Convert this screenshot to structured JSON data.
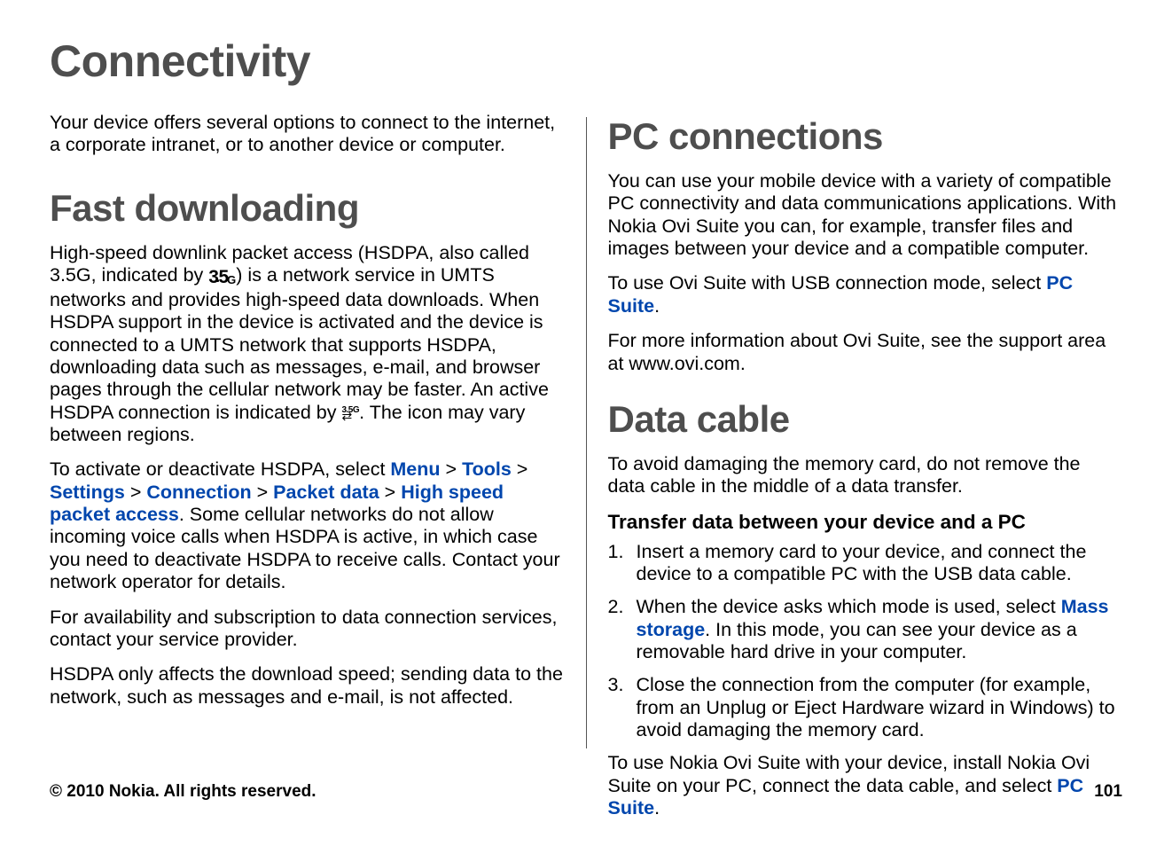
{
  "colors": {
    "heading": "#4e4e4e",
    "link": "#0046ad",
    "text": "#000000",
    "divider": "#555555",
    "background": "#ffffff"
  },
  "pageTitle": "Connectivity",
  "left": {
    "intro": "Your device offers several options to connect to the internet, a corporate intranet, or to another device or computer.",
    "fastDownloading": {
      "heading": "Fast downloading",
      "p1a": "High-speed downlink packet access (HSDPA, also called 3.5G, indicated by ",
      "p1b": ") is a network service in UMTS networks and provides high-speed data downloads. When HSDPA support in the device is activated and the device is connected to a UMTS network that supports HSDPA, downloading data such as messages, e-mail, and browser pages through the cellular network may be faster. An active HSDPA connection is indicated by ",
      "p1c": ". The icon may vary between regions.",
      "p2a": "To activate or deactivate HSDPA, select ",
      "nav": {
        "menu": "Menu",
        "tools": "Tools",
        "settings": "Settings",
        "connection": "Connection",
        "packetData": "Packet data",
        "hspa": "High speed packet access"
      },
      "sep": ">",
      "p2b": ". Some cellular networks do not allow incoming voice calls when HSDPA is active, in which case you need to deactivate HSDPA to receive calls. Contact your network operator for details.",
      "p3": "For availability and subscription to data connection services, contact your service provider.",
      "p4": "HSDPA only affects the download speed; sending data to the network, such as messages and e-mail, is not affected."
    }
  },
  "right": {
    "pcConnections": {
      "heading": "PC connections",
      "p1": "You can use your mobile device with a variety of compatible PC connectivity and data communications applications. With Nokia Ovi Suite you can, for example, transfer files and images between your device and a compatible computer.",
      "p2a": "To use Ovi Suite with USB connection mode, select ",
      "p2link": "PC Suite",
      "p2b": ".",
      "p3": "For more information about Ovi Suite, see the support area at www.ovi.com."
    },
    "dataCable": {
      "heading": "Data cable",
      "p1": "To avoid damaging the memory card, do not remove the data cable in the middle of a data transfer.",
      "subhead": "Transfer data between your device and a PC",
      "steps": {
        "s1": "Insert a memory card to your device, and connect the device to a compatible PC with the USB data cable.",
        "s2a": "When the device asks which mode is used, select ",
        "s2link": "Mass storage",
        "s2b": ". In this mode, you can see your device as a removable hard drive in your computer.",
        "s3": "Close the connection from the computer (for example, from an Unplug or Eject Hardware wizard in Windows) to avoid damaging the memory card."
      },
      "p2a": "To use Nokia Ovi Suite with your device, install Nokia Ovi Suite on your PC, connect the data cable, and select ",
      "p2link": "PC Suite",
      "p2b": "."
    }
  },
  "footer": {
    "copyright": "© 2010 Nokia. All rights reserved.",
    "page": "101"
  }
}
